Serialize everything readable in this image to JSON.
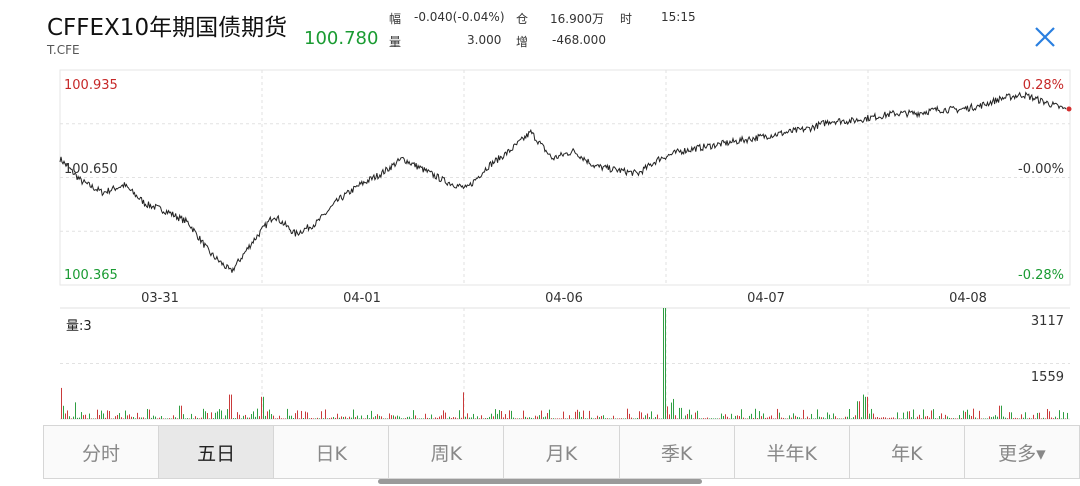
{
  "header": {
    "title": "CFFEX10年期国债期货",
    "symbol": "T.CFE",
    "price": "100.780",
    "quote": {
      "fu_label": "幅",
      "fu_value": "-0.040(-0.04%)",
      "cang_label": "仓",
      "cang_value": "16.900万",
      "shi_label": "时",
      "shi_value": "15:15",
      "liang_label": "量",
      "liang_value": "3.000",
      "zeng_label": "增",
      "zeng_value": "-468.000"
    },
    "close_icon": "close-icon"
  },
  "price_chart": {
    "y_top_label": "100.935",
    "y_mid_label": "100.650",
    "y_bottom_label": "100.365",
    "pct_top": "0.28%",
    "pct_mid": "-0.00%",
    "pct_bottom": "-0.28%",
    "dates": [
      "03-31",
      "04-01",
      "04-06",
      "04-07",
      "04-08"
    ],
    "colors": {
      "up": "#c62828",
      "down": "#1a9b32",
      "line": "#222222"
    }
  },
  "volume_chart": {
    "label": "量:3",
    "max_label": "3117",
    "mid_label": "1559"
  },
  "tabs": [
    {
      "label": "分时"
    },
    {
      "label": "五日"
    },
    {
      "label": "日K"
    },
    {
      "label": "周K"
    },
    {
      "label": "月K"
    },
    {
      "label": "季K"
    },
    {
      "label": "半年K"
    },
    {
      "label": "年K"
    },
    {
      "label": "更多▾"
    }
  ],
  "active_tab": "五日",
  "chart_data": {
    "type": "line",
    "title": "",
    "ylim": [
      100.365,
      100.935
    ],
    "days": [
      "03-31",
      "04-01",
      "04-06",
      "04-07",
      "04-08"
    ],
    "series": [
      {
        "values": [
          100.7,
          100.64,
          100.61,
          100.63,
          100.58,
          100.56,
          100.53,
          100.45,
          100.4,
          100.48,
          100.55,
          100.5,
          100.53,
          100.59,
          100.63,
          100.66,
          100.7,
          100.67,
          100.64,
          100.62,
          100.68,
          100.72,
          100.77,
          100.7,
          100.72,
          100.68,
          100.67,
          100.66,
          100.7,
          100.72,
          100.73,
          100.74,
          100.75,
          100.76,
          100.77,
          100.78,
          100.8,
          100.8,
          100.81,
          100.82,
          100.82,
          100.83,
          100.83,
          100.84,
          100.86,
          100.87,
          100.85,
          100.83
        ]
      }
    ],
    "volume": {
      "ylim": [
        0,
        3117
      ],
      "ticks": [
        1559,
        3117
      ]
    }
  }
}
